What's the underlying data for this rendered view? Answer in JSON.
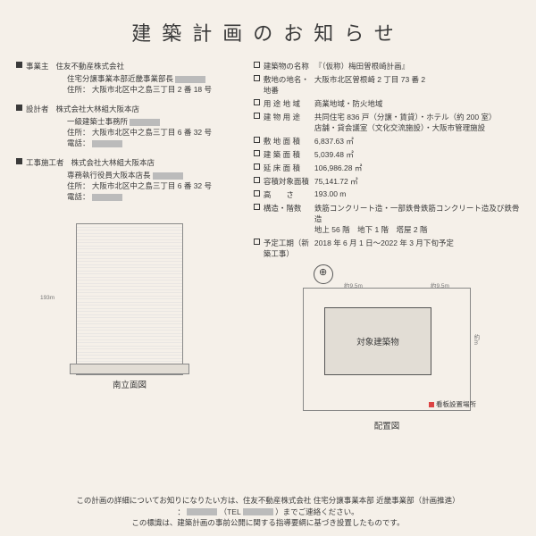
{
  "title": "建築計画のお知らせ",
  "left": {
    "owner": {
      "heading": "事業主",
      "name": "住友不動産株式会社",
      "line2": "住宅分譲事業本部近畿事業部長",
      "addr_label": "住所：",
      "addr": "大阪市北区中之島三丁目 2 番 18 号"
    },
    "designer": {
      "heading": "設計者",
      "name": "株式会社大林組大阪本店",
      "line2": "一級建築士事務所",
      "addr_label": "住所：",
      "addr": "大阪市北区中之島三丁目 6 番 32 号",
      "tel_label": "電話："
    },
    "builder": {
      "heading": "工事施工者",
      "name": "株式会社大林組大阪本店",
      "line2": "専務執行役員大阪本店長",
      "addr_label": "住所：",
      "addr": "大阪市北区中之島三丁目 6 番 32 号",
      "tel_label": "電話："
    }
  },
  "right": [
    {
      "label": "建築物の名称",
      "value": "『（仮称）梅田曽根崎計画』"
    },
    {
      "label": "敷地の地名・地番",
      "value": "大阪市北区曽根崎 2 丁目 73 番 2"
    },
    {
      "label": "用 途 地 域",
      "value": "商業地域・防火地域"
    },
    {
      "label": "建 物 用 途",
      "value": "共同住宅 836 戸（分譲・賃貸）・ホテル（約 200 室）",
      "value2": "店舗・貸会議室（文化交流施設）・大阪市管理施設"
    },
    {
      "label": "敷 地 面 積",
      "value": "6,837.63 ㎡"
    },
    {
      "label": "建 築 面 積",
      "value": "5,039.48 ㎡"
    },
    {
      "label": "延 床 面 積",
      "value": "106,986.28 ㎡"
    },
    {
      "label": "容積対象面積",
      "value": "75,141.72 ㎡"
    },
    {
      "label": "高　　さ",
      "value": "193.00 m"
    },
    {
      "label": "構造・階数",
      "value": "鉄筋コンクリート造・一部鉄骨鉄筋コンクリート造及び鉄骨造",
      "value2": "地上 56 階　地下 1 階　塔屋 2 階"
    },
    {
      "label": "予定工期（新築工事）",
      "value": "2018 年 6 月 1 日～2022 年 3 月下旬予定"
    }
  ],
  "elev_cap": "南立面図",
  "site_cap": "配置図",
  "site_box": "対象建築物",
  "legend": "看板設置場所",
  "road_n": "約9.5m",
  "road_e": "約9.5m",
  "road_right": "約m",
  "dim_h": "193m",
  "footer1": "この計画の詳細についてお知りになりたい方は、住友不動産株式会社 住宅分譲事業本部 近畿事業部（計画推進）",
  "footer_tel_l": "：",
  "footer_tel_m": "（TEL",
  "footer_tel_r": "）までご連絡ください。",
  "footer2": "この標識は、建築計画の事前公開に関する指導要綱に基づき設置したものです。"
}
